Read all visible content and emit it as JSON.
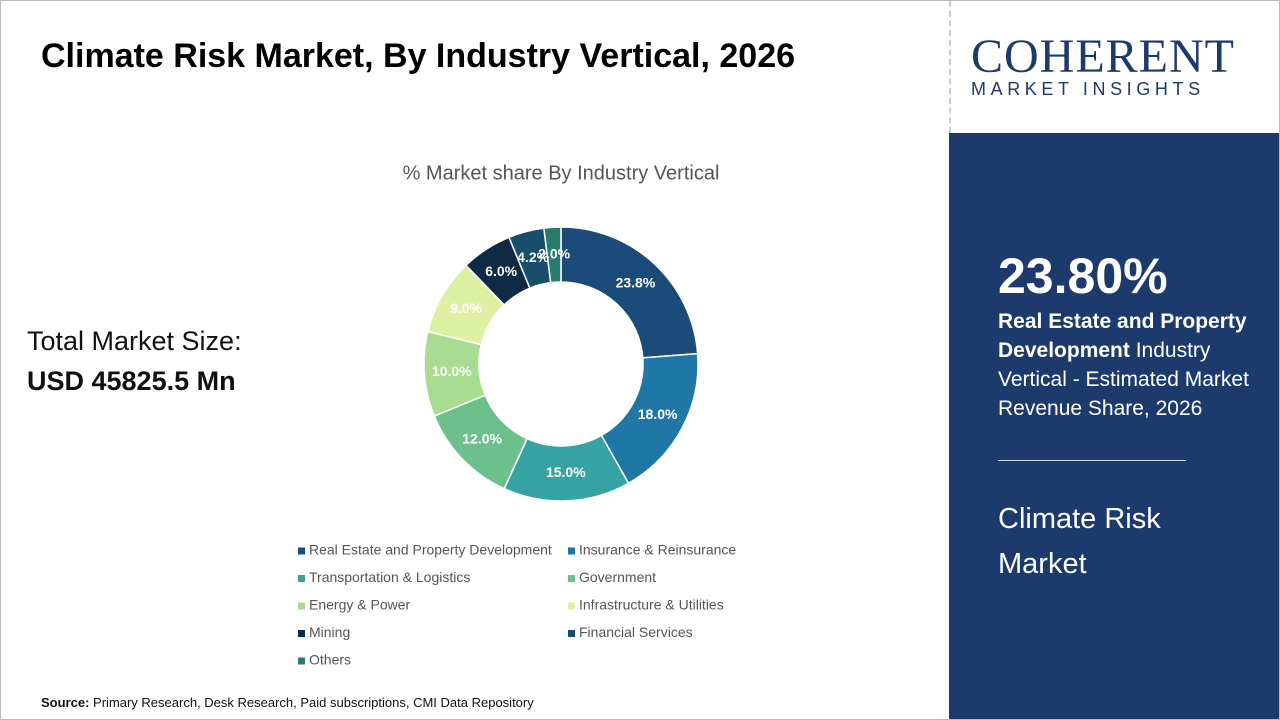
{
  "header": {
    "title": "Climate Risk Market, By Industry Vertical, 2026"
  },
  "market_size": {
    "label": "Total Market Size:",
    "value": "USD 45825.5 Mn"
  },
  "chart_data": {
    "type": "donut",
    "title": "% Market share By Industry Vertical",
    "categories": [
      "Real Estate and Property Development",
      "Insurance & Reinsurance",
      "Transportation & Logistics",
      "Government",
      "Energy & Power",
      "Infrastructure & Utilities",
      "Mining",
      "Financial Services",
      "Others"
    ],
    "values": [
      23.8,
      18.0,
      15.0,
      12.0,
      10.0,
      9.0,
      6.0,
      4.2,
      2.0
    ],
    "value_labels": [
      "23.8%",
      "18.0%",
      "15.0%",
      "12.0%",
      "10.0%",
      "9.0%",
      "6.0%",
      "4.2%",
      "2.0%"
    ],
    "colors": [
      "#1b4b78",
      "#1f77a6",
      "#36a3a3",
      "#6cc08c",
      "#a8dc90",
      "#def0a2",
      "#0e2a45",
      "#194e6b",
      "#2a7a6e"
    ]
  },
  "source": {
    "label": "Source:",
    "text": "Primary Research, Desk Research, Paid subscriptions, CMI Data Repository"
  },
  "sidebar": {
    "logo_main": "COHERENT",
    "logo_sub": "MARKET INSIGHTS",
    "highlight_value": "23.80%",
    "highlight_bold": "Real Estate and Property Development",
    "highlight_text": "Industry Vertical - Estimated Market Revenue Share, 2026",
    "market_name": "Climate Risk Market"
  }
}
